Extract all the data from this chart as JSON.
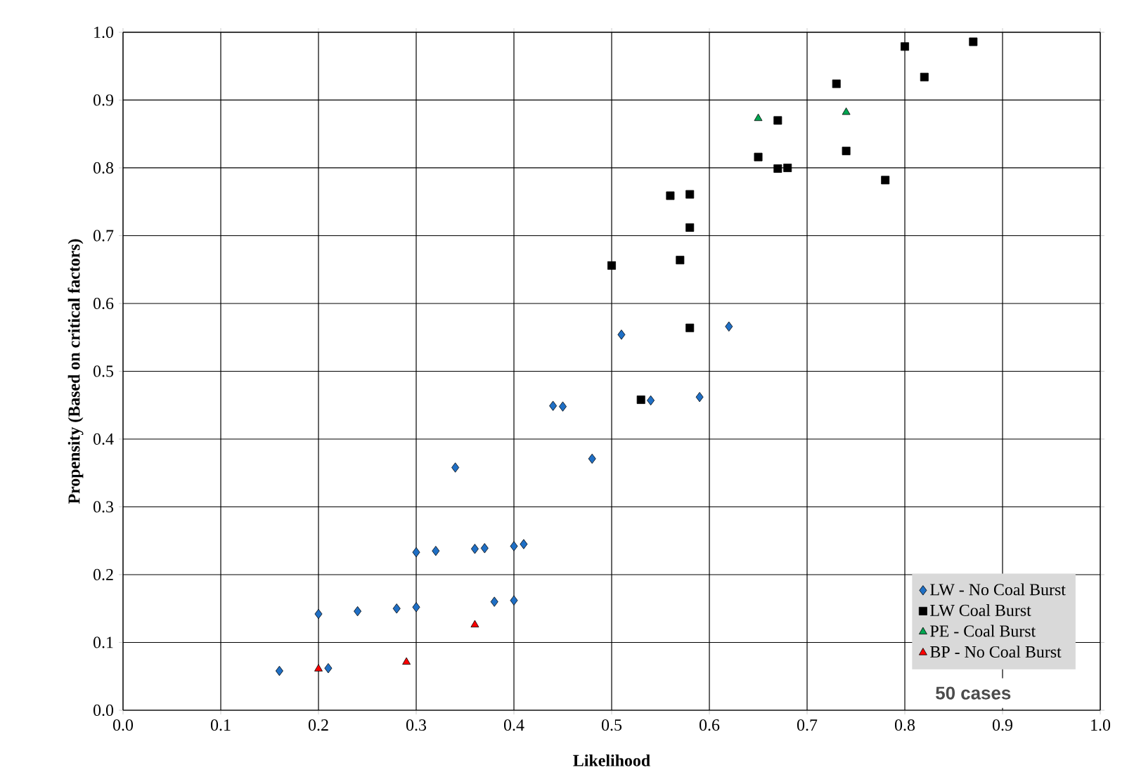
{
  "chart_data": {
    "type": "scatter",
    "xlabel": "Likelihood",
    "ylabel": "Propensity  (Based on critical factors)",
    "xlim": [
      0,
      1
    ],
    "ylim": [
      0,
      1
    ],
    "xticks": [
      {
        "value": 0,
        "label": "0.0"
      },
      0.1,
      0.2,
      0.3,
      0.4,
      0.5,
      0.6,
      0.7,
      0.8,
      0.9,
      {
        "value": 1,
        "label": "1.0"
      }
    ],
    "yticks": [
      {
        "value": 0,
        "label": "0.0"
      },
      0.1,
      0.2,
      0.3,
      0.4,
      0.5,
      0.6,
      0.7,
      0.8,
      0.9,
      {
        "value": 1,
        "label": "1.0"
      }
    ],
    "grid": true,
    "legend": "bottom right",
    "annotations": [
      "50 cases"
    ],
    "series": [
      {
        "name": "LW - No Coal Burst",
        "color": "#1f6fc5",
        "marker": "diamond",
        "x": [
          0.16,
          0.2,
          0.21,
          0.24,
          0.28,
          0.3,
          0.3,
          0.32,
          0.34,
          0.36,
          0.37,
          0.38,
          0.4,
          0.4,
          0.41,
          0.44,
          0.45,
          0.48,
          0.51,
          0.54,
          0.59,
          0.62
        ],
        "values": [
          0.058,
          0.142,
          0.062,
          0.146,
          0.15,
          0.152,
          0.233,
          0.235,
          0.358,
          0.238,
          0.239,
          0.16,
          0.162,
          0.242,
          0.245,
          0.449,
          0.448,
          0.371,
          0.554,
          0.457,
          0.462,
          0.566
        ]
      },
      {
        "name": "LW Coal Burst",
        "color": "#000000",
        "marker": "square",
        "x": [
          0.5,
          0.53,
          0.56,
          0.57,
          0.58,
          0.58,
          0.58,
          0.65,
          0.67,
          0.67,
          0.68,
          0.73,
          0.74,
          0.78,
          0.8,
          0.82,
          0.87
        ],
        "values": [
          0.656,
          0.458,
          0.759,
          0.664,
          0.761,
          0.712,
          0.564,
          0.816,
          0.87,
          0.799,
          0.8,
          0.924,
          0.825,
          0.782,
          0.979,
          0.934,
          0.986
        ]
      },
      {
        "name": "PE - Coal Burst",
        "color": "#00a651",
        "marker": "triangle",
        "x": [
          0.65,
          0.74
        ],
        "values": [
          0.873,
          0.882
        ]
      },
      {
        "name": "BP  - No Coal Burst",
        "color": "#ff0000",
        "marker": "triangle",
        "x": [
          0.2,
          0.29,
          0.36
        ],
        "values": [
          0.061,
          0.071,
          0.126
        ]
      }
    ]
  }
}
